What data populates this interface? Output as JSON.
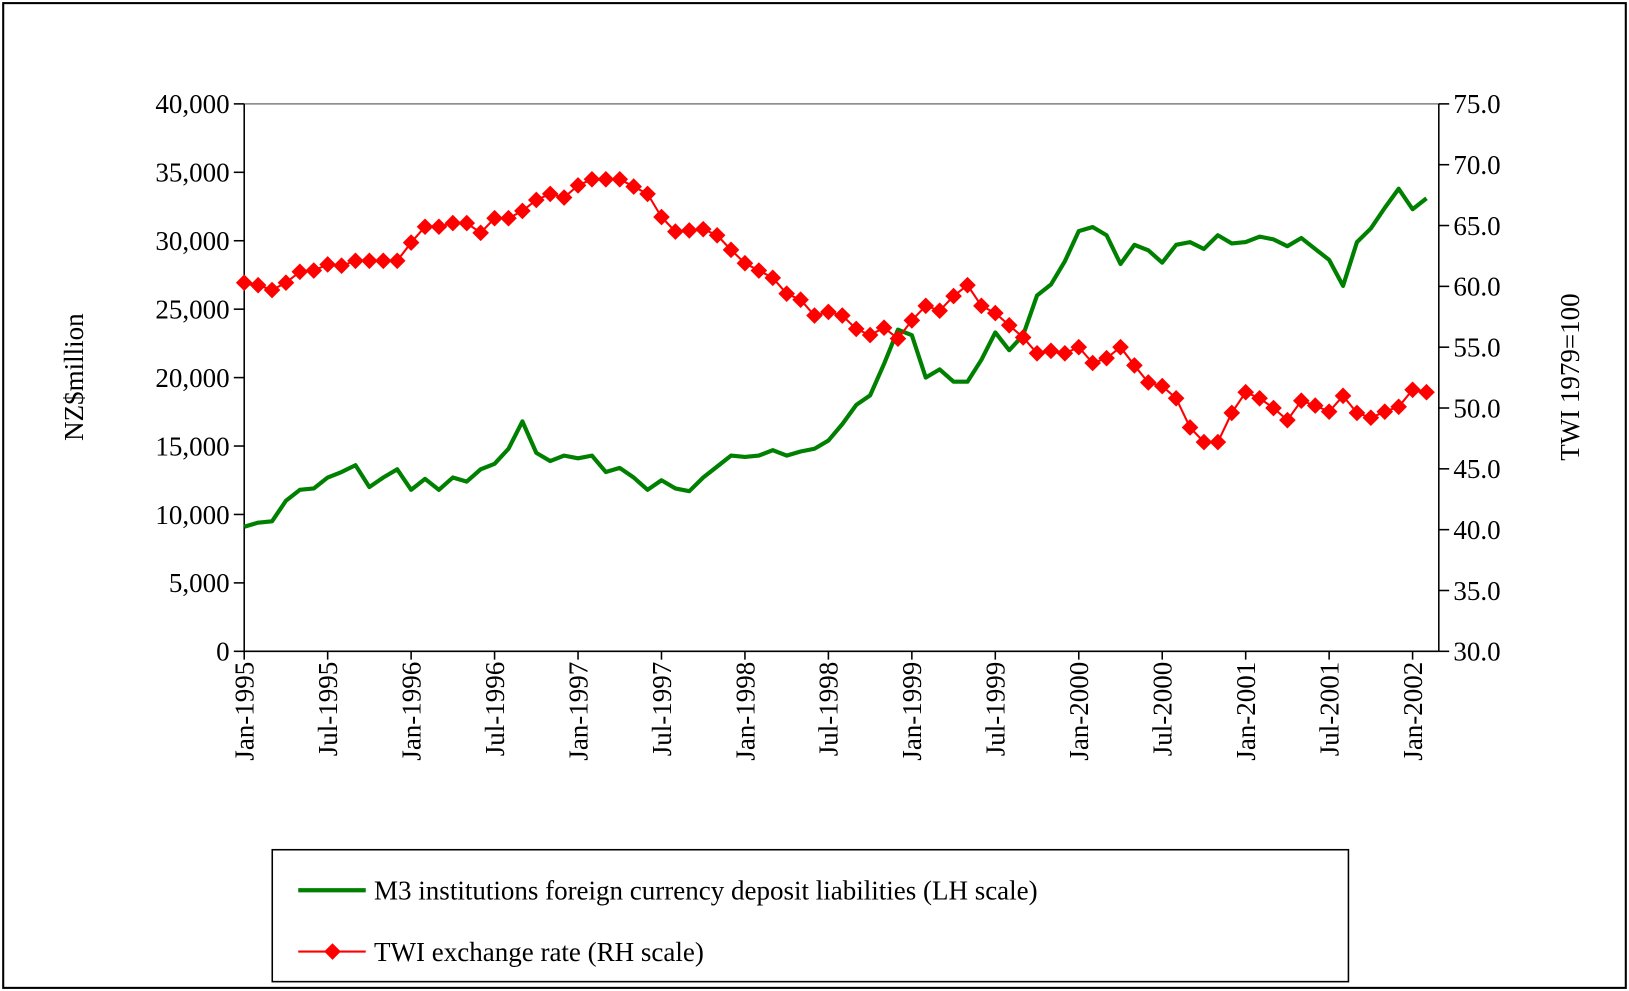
{
  "chart_data": {
    "type": "line",
    "ylabel": "NZ$million",
    "y2label": "TWI 1979=100",
    "categories": [
      "Jan-1995",
      null,
      null,
      null,
      null,
      null,
      "Jul-1995",
      null,
      null,
      null,
      null,
      null,
      "Jan-1996",
      null,
      null,
      null,
      null,
      null,
      "Jul-1996",
      null,
      null,
      null,
      null,
      null,
      "Jan-1997",
      null,
      null,
      null,
      null,
      null,
      "Jul-1997",
      null,
      null,
      null,
      null,
      null,
      "Jan-1998",
      null,
      null,
      null,
      null,
      null,
      "Jul-1998",
      null,
      null,
      null,
      null,
      null,
      "Jan-1999",
      null,
      null,
      null,
      null,
      null,
      "Jul-1999",
      null,
      null,
      null,
      null,
      null,
      "Jan-2000",
      null,
      null,
      null,
      null,
      null,
      "Jul-2000",
      null,
      null,
      null,
      null,
      null,
      "Jan-2001",
      null,
      null,
      null,
      null,
      null,
      "Jul-2001",
      null,
      null,
      null,
      null,
      null,
      "Jan-2002",
      null
    ],
    "series": [
      {
        "name": "M3 institutions foreign currency deposit liabilities (LH scale)",
        "color": "#008000",
        "axis": "y",
        "values": [
          9100,
          9400,
          9500,
          11000,
          11800,
          11900,
          12700,
          13100,
          13600,
          12000,
          12700,
          13300,
          11800,
          12600,
          11800,
          12700,
          12400,
          13300,
          13700,
          14800,
          16800,
          14500,
          13900,
          14300,
          14100,
          14300,
          13100,
          13400,
          12700,
          11800,
          12500,
          11900,
          11700,
          12700,
          13500,
          14300,
          14200,
          14300,
          14700,
          14300,
          14600,
          14800,
          15400,
          16600,
          18000,
          18700,
          21000,
          23500,
          23100,
          20000,
          20600,
          19700,
          19700,
          21300,
          23300,
          22000,
          23100,
          26000,
          26800,
          28500,
          30700,
          31000,
          30400,
          28300,
          29700,
          29300,
          28400,
          29700,
          29900,
          29400,
          30400,
          29800,
          29900,
          30300,
          30100,
          29600,
          30200,
          29400,
          28600,
          26700,
          29900,
          30900,
          32400,
          33800,
          32300,
          33100
        ]
      },
      {
        "name": "TWI exchange rate (RH scale)",
        "color": "#ff0000",
        "axis": "y2",
        "marker": "diamond",
        "values": [
          60.3,
          60.1,
          59.7,
          60.3,
          61.2,
          61.3,
          61.8,
          61.7,
          62.1,
          62.1,
          62.1,
          62.1,
          63.6,
          64.9,
          64.9,
          65.2,
          65.2,
          64.4,
          65.6,
          65.6,
          66.2,
          67.1,
          67.6,
          67.3,
          68.3,
          68.8,
          68.8,
          68.8,
          68.2,
          67.6,
          65.7,
          64.5,
          64.6,
          64.7,
          64.2,
          63.0,
          61.9,
          61.3,
          60.7,
          59.4,
          58.9,
          57.6,
          57.9,
          57.6,
          56.5,
          56.0,
          56.6,
          55.7,
          57.2,
          58.4,
          58.0,
          59.2,
          60.1,
          58.4,
          57.8,
          56.8,
          55.8,
          54.5,
          54.7,
          54.5,
          55.0,
          53.7,
          54.1,
          55.0,
          53.5,
          52.1,
          51.8,
          50.8,
          48.4,
          47.2,
          47.2,
          49.6,
          51.3,
          50.8,
          50.0,
          49.0,
          50.6,
          50.2,
          49.7,
          51.0,
          49.6,
          49.2,
          49.7,
          50.1,
          51.5,
          51.3
        ]
      }
    ],
    "ylim": [
      0,
      40000
    ],
    "yticks": [
      0,
      {
        "value": 5000,
        "label": "5,000"
      },
      {
        "value": 10000,
        "label": "10,000"
      },
      {
        "value": 15000,
        "label": "15,000"
      },
      {
        "value": 20000,
        "label": "20,000"
      },
      {
        "value": 25000,
        "label": "25,000"
      },
      {
        "value": 30000,
        "label": "30,000"
      },
      {
        "value": 35000,
        "label": "35,000"
      },
      {
        "value": 40000,
        "label": "40,000"
      }
    ],
    "y2lim": [
      30,
      75
    ],
    "y2ticks": [
      {
        "value": 30,
        "label": "30.0"
      },
      {
        "value": 35,
        "label": "35.0"
      },
      {
        "value": 40,
        "label": "40.0"
      },
      {
        "value": 45,
        "label": "45.0"
      },
      {
        "value": 50,
        "label": "50.0"
      },
      {
        "value": 55,
        "label": "55.0"
      },
      {
        "value": 60,
        "label": "60.0"
      },
      {
        "value": 65,
        "label": "65.0"
      },
      {
        "value": 70,
        "label": "70.0"
      },
      {
        "value": 75,
        "label": "75.0"
      }
    ],
    "legend": "bottom"
  }
}
